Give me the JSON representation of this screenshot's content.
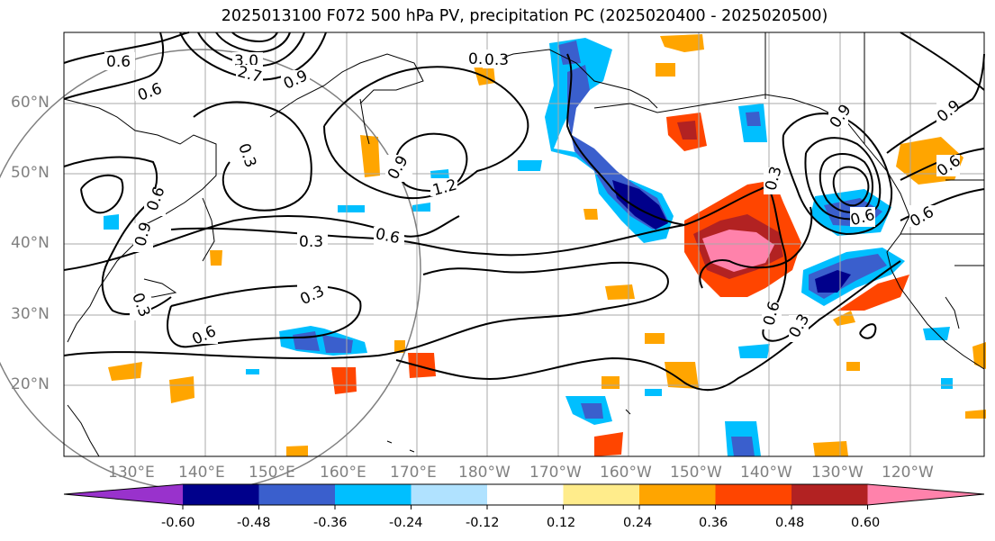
{
  "title": "2025013100 F072 500 hPa PV, precipitation PC (2025020400 - 2025020500)",
  "lat_labels": [
    "60°N",
    "50°N",
    "40°N",
    "30°N",
    "20°N"
  ],
  "lon_labels": [
    "130°E",
    "140°E",
    "150°E",
    "160°E",
    "170°E",
    "180°W",
    "170°W",
    "160°W",
    "150°W",
    "140°W",
    "130°W",
    "120°W"
  ],
  "contour_labels": [
    "0.6",
    "0.6",
    "3.0",
    "2.7",
    "0.9",
    "0.3",
    "0.3",
    "0.9",
    "1.2",
    "0.9",
    "0.6",
    "0.3",
    "0.6",
    "0.3",
    "0.6",
    "0.3",
    "0.3",
    "0.6",
    "0.3",
    "0.9",
    "0.9",
    "0.6",
    "0.6",
    "0.6",
    "0.3"
  ],
  "colorbar": {
    "tick_labels": [
      "-0.60",
      "-0.48",
      "-0.36",
      "-0.24",
      "-0.12",
      "0.12",
      "0.24",
      "0.36",
      "0.48",
      "0.60"
    ],
    "colors": [
      "#9932cc",
      "#00008b",
      "#3a5fcd",
      "#00bfff",
      "#b0e2ff",
      "#ffffff",
      "#ffec8b",
      "#ffa500",
      "#ff4500",
      "#b22222",
      "#ff82ab"
    ]
  }
}
